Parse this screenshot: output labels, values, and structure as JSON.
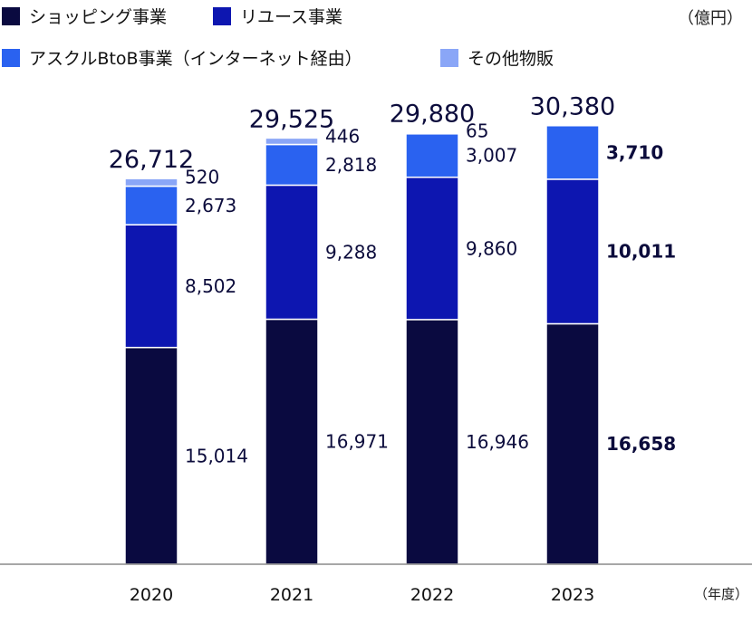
{
  "legend": [
    {
      "label": "ショッピング事業",
      "color": "#0a0a40"
    },
    {
      "label": "リユース事業",
      "color": "#0d16b0"
    },
    {
      "label": "アスクルBtoB事業（インターネット経由）",
      "color": "#2a62f0"
    },
    {
      "label": "その他物販",
      "color": "#8aa6f7"
    }
  ],
  "unit_label": "（億円）",
  "x_unit_label": "（年度）",
  "chart_data": {
    "type": "bar",
    "stacked": true,
    "categories": [
      "2020",
      "2021",
      "2022",
      "2023"
    ],
    "series": [
      {
        "name": "ショッピング事業",
        "color": "#0a0a40",
        "values": [
          15014,
          16971,
          16946,
          16658
        ],
        "labels": [
          "15,014",
          "16,971",
          "16,946",
          "16,658"
        ]
      },
      {
        "name": "リユース事業",
        "color": "#0d16b0",
        "values": [
          8502,
          9288,
          9860,
          10011
        ],
        "labels": [
          "8,502",
          "9,288",
          "9,860",
          "10,011"
        ]
      },
      {
        "name": "アスクルBtoB事業（インターネット経由）",
        "color": "#2a62f0",
        "values": [
          2673,
          2818,
          3007,
          3710
        ],
        "labels": [
          "2,673",
          "2,818",
          "3,007",
          "3,710"
        ]
      },
      {
        "name": "その他物販",
        "color": "#8aa6f7",
        "values": [
          520,
          446,
          65,
          0
        ],
        "labels": [
          "520",
          "446",
          "65",
          ""
        ]
      }
    ],
    "totals": [
      26712,
      29525,
      29880,
      30380
    ],
    "total_labels": [
      "26,712",
      "29,525",
      "29,880",
      "30,380"
    ],
    "highlight_category": "2023",
    "ylabel": "億円",
    "xlabel": "年度",
    "ylim": [
      0,
      30380
    ],
    "grid": false,
    "legend_position": "top-left"
  }
}
